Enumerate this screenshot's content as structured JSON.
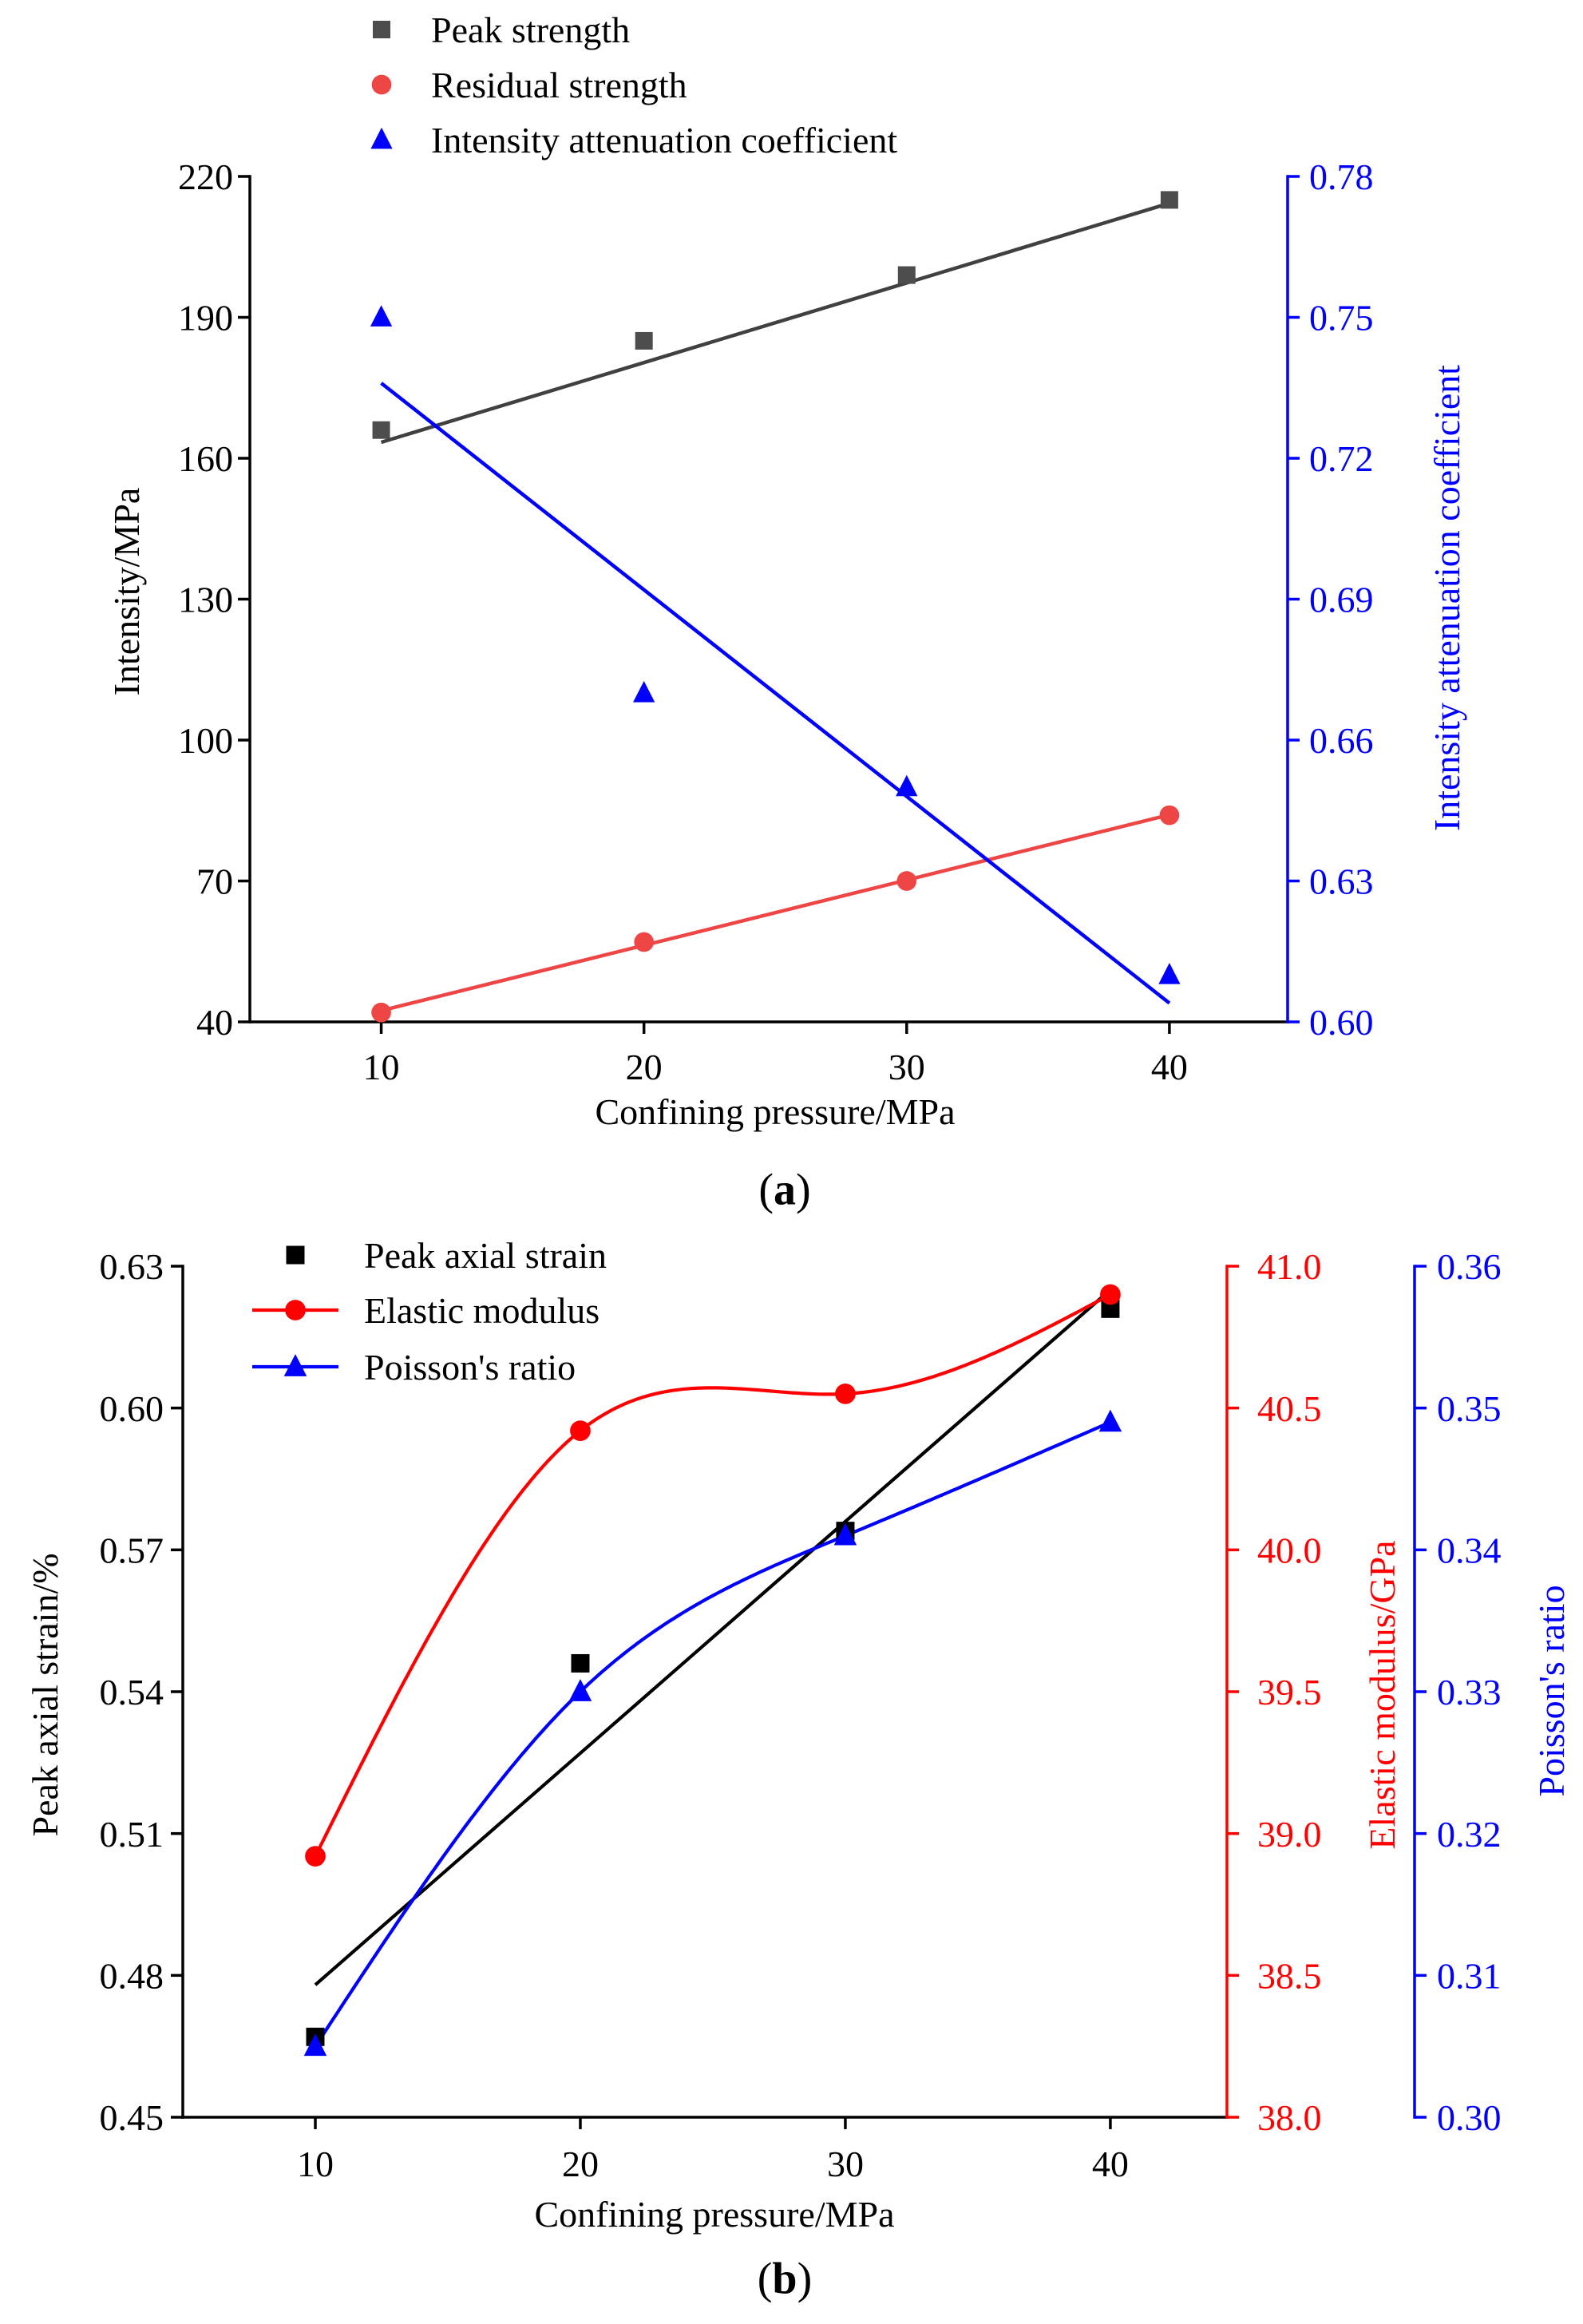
{
  "chart_data": [
    {
      "type": "scatter",
      "panel_label": "(a)",
      "xlabel": "Confining pressure/MPa",
      "xlim": [
        5,
        44.5
      ],
      "xticks": [
        10,
        20,
        30,
        40
      ],
      "legend": "top",
      "y_axes": [
        {
          "label": "Intensity/MPa",
          "ylim": [
            40,
            220
          ],
          "ticks": [
            40,
            70,
            100,
            130,
            160,
            190,
            220
          ],
          "decimals": 0,
          "color": "#000000"
        },
        {
          "label": "Intensity attenuation coefficient",
          "ylim": [
            0.6,
            0.78
          ],
          "ticks": [
            0.6,
            0.63,
            0.66,
            0.69,
            0.72,
            0.75,
            0.78
          ],
          "decimals": 2,
          "color": "#0000ff"
        }
      ],
      "series": [
        {
          "name": "Peak strength",
          "y_axis": 0,
          "marker": "square",
          "color": "#4d4d4d",
          "x": [
            10,
            20,
            30,
            40
          ],
          "values": [
            166,
            185,
            199,
            215
          ],
          "fit": {
            "x": [
              10,
              40
            ],
            "y": [
              163.4,
              214.3
            ],
            "color": "#404040"
          }
        },
        {
          "name": "Residual strength",
          "y_axis": 0,
          "marker": "circle",
          "color": "#ee4545",
          "x": [
            10,
            20,
            30,
            40
          ],
          "values": [
            42,
            57,
            70,
            84
          ],
          "fit": {
            "x": [
              10,
              40
            ],
            "y": [
              42.4,
              84.1
            ],
            "color": "#ee4545"
          }
        },
        {
          "name": "Intensity attenuation coefficient",
          "y_axis": 1,
          "marker": "triangle",
          "color": "#0000ff",
          "x": [
            10,
            20,
            30,
            40
          ],
          "values": [
            0.75,
            0.67,
            0.65,
            0.61
          ],
          "fit": {
            "x": [
              10,
              40
            ],
            "y": [
              0.736,
              0.604
            ],
            "color": "#0000ff"
          }
        }
      ]
    },
    {
      "type": "line",
      "panel_label": "(b)",
      "xlabel": "Confining pressure/MPa",
      "xlim": [
        5,
        44.4
      ],
      "xticks": [
        10,
        20,
        30,
        40
      ],
      "legend": "top-left",
      "y_axes": [
        {
          "label": "Peak axial strain/%",
          "ylim": [
            0.45,
            0.63
          ],
          "ticks": [
            0.45,
            0.48,
            0.51,
            0.54,
            0.57,
            0.6,
            0.63
          ],
          "decimals": 2,
          "color": "#000000"
        },
        {
          "label": "Elastic modulus/GPa",
          "ylim": [
            38.0,
            41.0
          ],
          "ticks": [
            38.0,
            38.5,
            39.0,
            39.5,
            40.0,
            40.5,
            41.0
          ],
          "decimals": 1,
          "color": "#ff0000"
        },
        {
          "label": "Poisson's ratio",
          "ylim": [
            0.3,
            0.36
          ],
          "ticks": [
            0.3,
            0.31,
            0.32,
            0.33,
            0.34,
            0.35,
            0.36
          ],
          "decimals": 2,
          "color": "#0000ff"
        }
      ],
      "series": [
        {
          "name": "Peak axial strain",
          "y_axis": 0,
          "marker": "square",
          "color": "#000000",
          "x": [
            10,
            20,
            30,
            40
          ],
          "values": [
            0.467,
            0.546,
            0.574,
            0.621
          ],
          "fit": {
            "x": [
              10,
              40
            ],
            "y": [
              0.478,
              0.625
            ],
            "color": "#000000"
          }
        },
        {
          "name": "Elastic modulus",
          "y_axis": 1,
          "marker": "circle",
          "color": "#ff0000",
          "x": [
            10,
            20,
            30,
            40
          ],
          "values": [
            38.92,
            40.42,
            40.55,
            40.9
          ],
          "smooth": true
        },
        {
          "name": "Poisson's ratio",
          "y_axis": 2,
          "marker": "triangle",
          "color": "#0000ff",
          "x": [
            10,
            20,
            30,
            40
          ],
          "values": [
            0.305,
            0.33,
            0.341,
            0.349
          ],
          "smooth": true
        }
      ]
    }
  ]
}
